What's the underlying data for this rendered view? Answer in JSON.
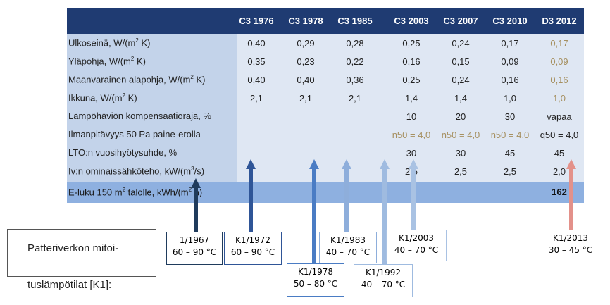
{
  "table": {
    "columns": [
      "C3 1976",
      "C3 1978",
      "C3 1985",
      "C3 2003",
      "C3 2007",
      "C3 2010",
      "D3 2012"
    ],
    "rows": [
      {
        "label_pre": "Ulkoseinä, W/(m",
        "sup": "2",
        "label_post": " K)",
        "values": [
          "0,40",
          "0,29",
          "0,28",
          "0,25",
          "0,24",
          "0,17",
          "0,17"
        ]
      },
      {
        "label_pre": "Yläpohja, W/(m",
        "sup": "2",
        "label_post": " K)",
        "values": [
          "0,35",
          "0,23",
          "0,22",
          "0,16",
          "0,15",
          "0,09",
          "0,09"
        ]
      },
      {
        "label_pre": "Maanvarainen alapohja, W/(m",
        "sup": "2",
        "label_post": " K)",
        "values": [
          "0,40",
          "0,40",
          "0,36",
          "0,25",
          "0,24",
          "0,16",
          "0,16"
        ]
      },
      {
        "label_pre": "Ikkuna, W/(m",
        "sup": "2",
        "label_post": " K)",
        "values": [
          "2,1",
          "2,1",
          "2,1",
          "1,4",
          "1,4",
          "1,0",
          "1,0"
        ]
      },
      {
        "label_pre": "Lämpöhäviön kompensaatioraja, %",
        "sup": "",
        "label_post": "",
        "values": [
          "",
          "",
          "",
          "10",
          "20",
          "30",
          "vapaa"
        ]
      },
      {
        "label_pre": "Ilmanpitävyys 50 Pa paine-erolla",
        "sup": "",
        "label_post": "",
        "values": [
          "",
          "",
          "",
          "n50 = 4,0",
          "n50 = 4,0",
          "n50 = 4,0",
          "q50 = 4,0"
        ]
      },
      {
        "label_pre": "LTO:n vuosihyötysuhde, %",
        "sup": "",
        "label_post": "",
        "values": [
          "",
          "",
          "",
          "30",
          "30",
          "45",
          "45"
        ]
      },
      {
        "label_pre": "Iv:n ominaissähköteho, kW/(m",
        "sup": "3",
        "label_post": "/s)",
        "values": [
          "",
          "",
          "",
          "2,5",
          "2,5",
          "2,5",
          "2,0"
        ]
      }
    ],
    "eluku": {
      "label_pre": "E-luku 150 m",
      "sup": "2",
      "label_post": " talolle, kWh/(m",
      "sup2": "2",
      "label_post2": " a)",
      "value": "162"
    }
  },
  "legend": {
    "line1": "Patteriverkon mitoi-",
    "line2": "tuslämpötilat [K1]:"
  },
  "boxes": [
    {
      "id": "k1967",
      "line1": "1/1967",
      "line2": "60 – 90 °C",
      "color": "#1f3b5c"
    },
    {
      "id": "k1972",
      "line1": "K1/1972",
      "line2": "60 – 90 °C",
      "color": "#2f5597"
    },
    {
      "id": "k1978",
      "line1": "K1/1978",
      "line2": "50 – 80 °C",
      "color": "#4a7cc4"
    },
    {
      "id": "k1983",
      "line1": "K1/1983",
      "line2": "40 – 70 °C",
      "color": "#8eaedb"
    },
    {
      "id": "k1992",
      "line1": "K1/1992",
      "line2": "40 – 70 °C",
      "color": "#9fbbe0"
    },
    {
      "id": "k2003",
      "line1": "K1/2003",
      "line2": "40 – 70 °C",
      "color": "#a9c2e3"
    },
    {
      "id": "k2013",
      "line1": "K1/2013",
      "line2": "30 – 45 °C",
      "color": "#e3918a"
    }
  ]
}
